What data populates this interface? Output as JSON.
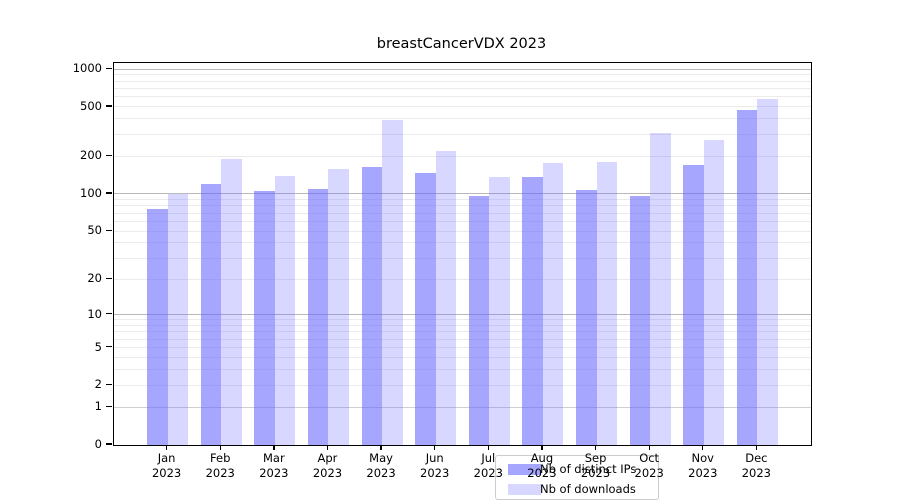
{
  "chart_data": {
    "type": "bar",
    "title": "breastCancerVDX 2023",
    "categories": [
      "Jan",
      "Feb",
      "Mar",
      "Apr",
      "May",
      "Jun",
      "Jul",
      "Aug",
      "Sep",
      "Oct",
      "Nov",
      "Dec"
    ],
    "category_year": "2023",
    "series": [
      {
        "name": "Nb of distinct IPs",
        "color": "rgba(102,102,255,0.58)",
        "values": [
          75,
          120,
          105,
          110,
          165,
          148,
          96,
          138,
          108,
          97,
          170,
          470
        ]
      },
      {
        "name": "Nb of downloads",
        "color": "rgba(102,102,255,0.26)",
        "values": [
          100,
          192,
          140,
          158,
          390,
          222,
          136,
          177,
          180,
          310,
          272,
          575
        ]
      }
    ],
    "yscale": "log1p",
    "yticks": [
      0,
      1,
      2,
      5,
      10,
      20,
      50,
      100,
      200,
      500,
      1000
    ],
    "ylim": [
      0,
      1120
    ],
    "grid": "horizontal",
    "legend_position": "lower center"
  }
}
